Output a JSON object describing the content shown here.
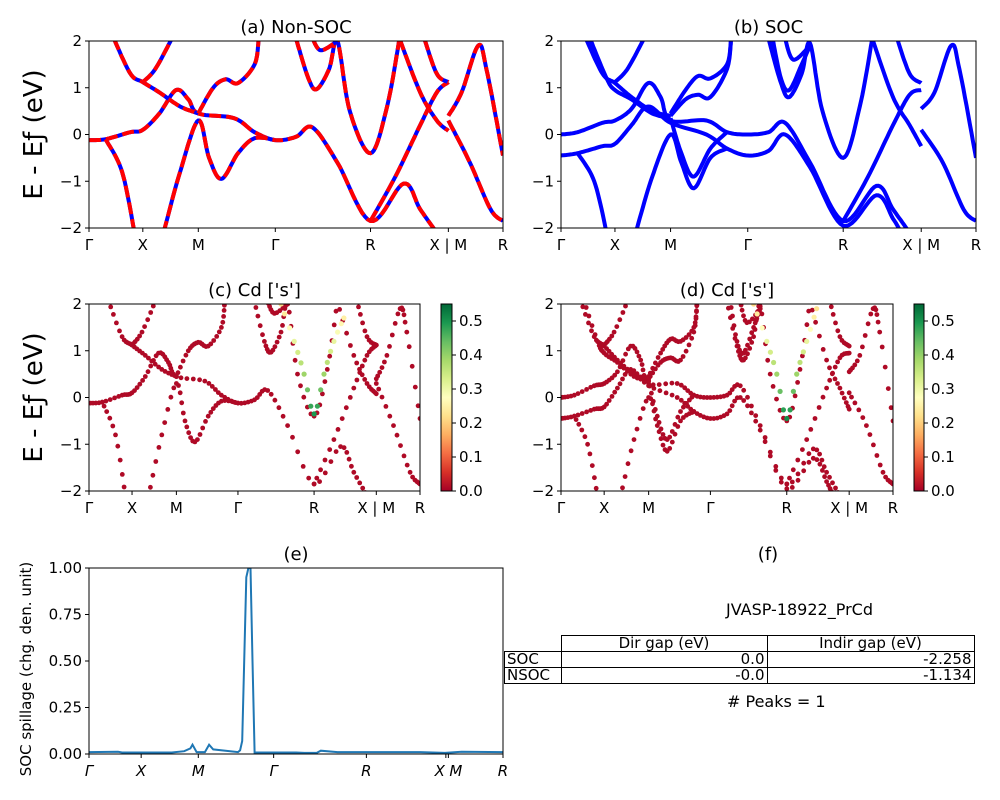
{
  "chart_data": [
    {
      "id": "a",
      "type": "line",
      "title": "(a) Non-SOC",
      "ylabel": "E - E_f (eV)",
      "ylim": [
        -2,
        2
      ],
      "yticks": [
        "2",
        "1",
        "0",
        "−1",
        "−2"
      ],
      "ytick_values": [
        2,
        1,
        0,
        -1,
        -2
      ],
      "xticks": [
        "Γ",
        "X",
        "M",
        "Γ",
        "R",
        "X | M",
        "R"
      ],
      "xtick_positions": [
        0,
        0.13,
        0.264,
        0.45,
        0.68,
        0.868,
        1.0
      ],
      "style": "red solid with blue dashes",
      "colors": {
        "line": "#ff0000",
        "dash": "#0000ff"
      },
      "bands": [
        [
          [
            0,
            -0.12
          ],
          [
            0.04,
            -0.1
          ],
          [
            0.1,
            0.05
          ],
          [
            0.13,
            0.1
          ],
          [
            0.17,
            0.45
          ],
          [
            0.21,
            0.95
          ],
          [
            0.24,
            0.75
          ],
          [
            0.264,
            0.45
          ],
          [
            0.35,
            0.35
          ],
          [
            0.4,
            0.05
          ],
          [
            0.45,
            -0.12
          ],
          [
            0.5,
            -0.05
          ],
          [
            0.54,
            0.15
          ],
          [
            0.6,
            -0.6
          ],
          [
            0.68,
            -1.85
          ],
          [
            0.76,
            -1.05
          ],
          [
            0.8,
            -1.6
          ],
          [
            0.84,
            -2.1
          ]
        ],
        [
          [
            0.04,
            -0.1
          ],
          [
            0.08,
            -0.8
          ],
          [
            0.11,
            -2.1
          ]
        ],
        [
          [
            0.18,
            -2.1
          ],
          [
            0.22,
            -0.8
          ],
          [
            0.264,
            0.3
          ],
          [
            0.29,
            -0.5
          ],
          [
            0.32,
            -0.95
          ],
          [
            0.36,
            -0.4
          ],
          [
            0.4,
            -0.08
          ],
          [
            0.45,
            -0.12
          ]
        ],
        [
          [
            0.06,
            2.05
          ],
          [
            0.1,
            1.3
          ],
          [
            0.13,
            1.12
          ],
          [
            0.17,
            0.9
          ],
          [
            0.22,
            0.6
          ],
          [
            0.264,
            0.45
          ]
        ],
        [
          [
            0.13,
            1.12
          ],
          [
            0.16,
            1.4
          ],
          [
            0.2,
            2.05
          ]
        ],
        [
          [
            0.264,
            0.45
          ],
          [
            0.3,
            1.0
          ],
          [
            0.33,
            1.18
          ],
          [
            0.36,
            1.1
          ],
          [
            0.4,
            1.5
          ],
          [
            0.41,
            2.05
          ]
        ],
        [
          [
            0.5,
            2.05
          ],
          [
            0.53,
            1.2
          ],
          [
            0.55,
            0.97
          ],
          [
            0.58,
            1.4
          ],
          [
            0.6,
            2.0
          ],
          [
            0.63,
            0.5
          ],
          [
            0.68,
            -0.4
          ],
          [
            0.72,
            0.6
          ],
          [
            0.75,
            2.05
          ]
        ],
        [
          [
            0.54,
            2.05
          ],
          [
            0.56,
            1.8
          ],
          [
            0.6,
            2.0
          ]
        ],
        [
          [
            0.68,
            -1.85
          ],
          [
            0.74,
            -0.9
          ],
          [
            0.8,
            0.2
          ],
          [
            0.84,
            0.9
          ],
          [
            0.868,
            1.12
          ]
        ],
        [
          [
            0.75,
            2.05
          ],
          [
            0.8,
            0.9
          ],
          [
            0.84,
            0.3
          ],
          [
            0.868,
            0.08
          ]
        ],
        [
          [
            0.81,
            2.05
          ],
          [
            0.84,
            1.3
          ],
          [
            0.868,
            1.12
          ]
        ],
        [
          [
            0.868,
            0.4
          ],
          [
            0.9,
            0.9
          ],
          [
            0.94,
            1.9
          ],
          [
            0.96,
            1.4
          ],
          [
            1.0,
            -0.45
          ]
        ],
        [
          [
            0.868,
            0.3
          ],
          [
            0.92,
            -0.6
          ],
          [
            0.97,
            -1.6
          ],
          [
            1.0,
            -1.85
          ]
        ]
      ]
    },
    {
      "id": "b",
      "type": "line",
      "title": "(b) SOC",
      "ylim": [
        -2,
        2
      ],
      "yticks": [
        "2",
        "1",
        "0",
        "−1",
        "−2"
      ],
      "ytick_values": [
        2,
        1,
        0,
        -1,
        -2
      ],
      "xticks": [
        "Γ",
        "X",
        "M",
        "Γ",
        "R",
        "X | M",
        "R"
      ],
      "xtick_positions": [
        0,
        0.13,
        0.264,
        0.45,
        0.68,
        0.868,
        1.0
      ],
      "colors": {
        "line": "#0000ff"
      },
      "bands": [
        [
          [
            0,
            0.0
          ],
          [
            0.04,
            0.05
          ],
          [
            0.1,
            0.25
          ],
          [
            0.13,
            0.3
          ],
          [
            0.17,
            0.55
          ],
          [
            0.21,
            1.1
          ],
          [
            0.24,
            0.8
          ],
          [
            0.264,
            0.3
          ],
          [
            0.35,
            0.3
          ],
          [
            0.4,
            0.05
          ],
          [
            0.45,
            0.0
          ],
          [
            0.5,
            0.05
          ],
          [
            0.54,
            0.25
          ],
          [
            0.6,
            -0.6
          ],
          [
            0.68,
            -1.85
          ],
          [
            0.76,
            -1.1
          ],
          [
            0.8,
            -1.6
          ],
          [
            0.84,
            -2.1
          ]
        ],
        [
          [
            0,
            -0.45
          ],
          [
            0.04,
            -0.4
          ],
          [
            0.1,
            -0.25
          ],
          [
            0.13,
            -0.2
          ],
          [
            0.17,
            0.2
          ],
          [
            0.21,
            0.6
          ],
          [
            0.264,
            0.25
          ],
          [
            0.35,
            0.0
          ],
          [
            0.4,
            -0.3
          ],
          [
            0.45,
            -0.45
          ],
          [
            0.5,
            -0.35
          ],
          [
            0.54,
            0.0
          ],
          [
            0.6,
            -0.7
          ],
          [
            0.68,
            -1.95
          ],
          [
            0.76,
            -1.3
          ],
          [
            0.8,
            -1.8
          ],
          [
            0.82,
            -2.1
          ]
        ],
        [
          [
            0.04,
            -0.4
          ],
          [
            0.08,
            -1.0
          ],
          [
            0.11,
            -2.1
          ]
        ],
        [
          [
            0.18,
            -2.1
          ],
          [
            0.22,
            -0.9
          ],
          [
            0.264,
            0.0
          ],
          [
            0.29,
            -0.6
          ],
          [
            0.32,
            -1.15
          ],
          [
            0.36,
            -0.5
          ],
          [
            0.4,
            -0.3
          ]
        ],
        [
          [
            0.264,
            0.35
          ],
          [
            0.29,
            -0.4
          ],
          [
            0.32,
            -0.9
          ],
          [
            0.36,
            -0.3
          ],
          [
            0.4,
            0.05
          ]
        ],
        [
          [
            0.06,
            2.05
          ],
          [
            0.1,
            1.3
          ],
          [
            0.13,
            1.1
          ],
          [
            0.17,
            0.8
          ],
          [
            0.22,
            0.5
          ],
          [
            0.264,
            0.4
          ]
        ],
        [
          [
            0.07,
            2.05
          ],
          [
            0.11,
            1.2
          ],
          [
            0.13,
            0.95
          ],
          [
            0.17,
            0.75
          ],
          [
            0.22,
            0.45
          ],
          [
            0.264,
            0.35
          ]
        ],
        [
          [
            0.13,
            1.12
          ],
          [
            0.16,
            1.4
          ],
          [
            0.2,
            2.05
          ]
        ],
        [
          [
            0.264,
            0.45
          ],
          [
            0.3,
            0.95
          ],
          [
            0.33,
            1.25
          ],
          [
            0.36,
            1.2
          ],
          [
            0.4,
            1.5
          ],
          [
            0.41,
            2.05
          ]
        ],
        [
          [
            0.264,
            0.4
          ],
          [
            0.3,
            0.75
          ],
          [
            0.33,
            0.85
          ],
          [
            0.36,
            0.8
          ],
          [
            0.4,
            1.4
          ],
          [
            0.41,
            2.05
          ]
        ],
        [
          [
            0.5,
            2.05
          ],
          [
            0.53,
            1.1
          ],
          [
            0.55,
            0.8
          ],
          [
            0.58,
            1.3
          ],
          [
            0.6,
            1.95
          ],
          [
            0.63,
            0.5
          ],
          [
            0.68,
            -0.5
          ],
          [
            0.72,
            0.6
          ],
          [
            0.75,
            2.05
          ]
        ],
        [
          [
            0.51,
            2.05
          ],
          [
            0.53,
            1.2
          ],
          [
            0.55,
            0.95
          ],
          [
            0.58,
            1.5
          ],
          [
            0.6,
            1.9
          ]
        ],
        [
          [
            0.54,
            2.05
          ],
          [
            0.56,
            1.6
          ],
          [
            0.6,
            1.9
          ]
        ],
        [
          [
            0.68,
            -1.85
          ],
          [
            0.74,
            -0.9
          ],
          [
            0.8,
            0.2
          ],
          [
            0.84,
            0.85
          ],
          [
            0.868,
            0.95
          ]
        ],
        [
          [
            0.75,
            2.05
          ],
          [
            0.8,
            0.8
          ],
          [
            0.84,
            0.2
          ],
          [
            0.868,
            -0.25
          ]
        ],
        [
          [
            0.81,
            2.05
          ],
          [
            0.84,
            1.3
          ],
          [
            0.868,
            1.1
          ]
        ],
        [
          [
            0.868,
            0.55
          ],
          [
            0.9,
            0.9
          ],
          [
            0.94,
            1.9
          ],
          [
            0.96,
            1.4
          ],
          [
            1.0,
            -0.5
          ]
        ],
        [
          [
            0.868,
            0.1
          ],
          [
            0.92,
            -0.6
          ],
          [
            0.97,
            -1.6
          ],
          [
            1.0,
            -1.85
          ]
        ]
      ]
    },
    {
      "id": "c",
      "type": "scatter",
      "title": "(c)  Cd ['s']",
      "ylabel": "E - E_f (eV)",
      "ylim": [
        -2,
        2
      ],
      "yticks": [
        "2",
        "1",
        "0",
        "−1",
        "−2"
      ],
      "ytick_values": [
        2,
        1,
        0,
        -1,
        -2
      ],
      "xticks": [
        "Γ",
        "X",
        "M",
        "Γ",
        "R",
        "X | M",
        "R"
      ],
      "xtick_positions": [
        0,
        0.13,
        0.264,
        0.45,
        0.68,
        0.868,
        1.0
      ],
      "colorbar": {
        "range": [
          0.0,
          0.55
        ],
        "ticks": [
          "0.0",
          "0.1",
          "0.2",
          "0.3",
          "0.4",
          "0.5"
        ],
        "tick_values": [
          0,
          0.1,
          0.2,
          0.3,
          0.4,
          0.5
        ],
        "cmap": "RdYlGn"
      },
      "weighted_bands_source": "a",
      "high_weight_band": [
        [
          0.58,
          2.0
        ],
        [
          0.62,
          1.2
        ],
        [
          0.65,
          0.5
        ],
        [
          0.68,
          -0.35
        ],
        [
          0.71,
          0.5
        ],
        [
          0.74,
          1.2
        ],
        [
          0.77,
          1.7
        ]
      ]
    },
    {
      "id": "d",
      "type": "scatter",
      "title": "(d) Cd ['s']",
      "ylim": [
        -2,
        2
      ],
      "yticks": [
        "2",
        "1",
        "0",
        "−1",
        "−2"
      ],
      "ytick_values": [
        2,
        1,
        0,
        -1,
        -2
      ],
      "xticks": [
        "Γ",
        "X",
        "M",
        "Γ",
        "R",
        "X | M",
        "R"
      ],
      "xtick_positions": [
        0,
        0.13,
        0.264,
        0.45,
        0.68,
        0.868,
        1.0
      ],
      "colorbar": {
        "range": [
          0.0,
          0.55
        ],
        "ticks": [
          "0.0",
          "0.1",
          "0.2",
          "0.3",
          "0.4",
          "0.5"
        ],
        "tick_values": [
          0,
          0.1,
          0.2,
          0.3,
          0.4,
          0.5
        ],
        "cmap": "RdYlGn"
      },
      "weighted_bands_source": "b",
      "high_weight_band": [
        [
          0.58,
          2.0
        ],
        [
          0.62,
          1.2
        ],
        [
          0.65,
          0.5
        ],
        [
          0.68,
          -0.45
        ],
        [
          0.71,
          0.5
        ],
        [
          0.74,
          1.2
        ],
        [
          0.77,
          1.9
        ]
      ]
    },
    {
      "id": "e",
      "type": "line",
      "title": "(e)",
      "ylabel": "SOC spillage (chg. den. unit)",
      "ylim": [
        0,
        1
      ],
      "yticks": [
        "1.00",
        "0.75",
        "0.50",
        "0.25",
        "0.00"
      ],
      "ytick_values": [
        1,
        0.75,
        0.5,
        0.25,
        0
      ],
      "xticks": [
        "Γ",
        "X",
        "M",
        "Γ",
        "R",
        "X",
        "M",
        "R"
      ],
      "xtick_positions": [
        0,
        0.126,
        0.264,
        0.446,
        0.67,
        0.862,
        0.868,
        1.0
      ],
      "color": "#1f77b4",
      "x": [
        0,
        0.07,
        0.08,
        0.2,
        0.23,
        0.245,
        0.25,
        0.26,
        0.28,
        0.29,
        0.3,
        0.36,
        0.365,
        0.37,
        0.38,
        0.385,
        0.39,
        0.395,
        0.4,
        0.5,
        0.52,
        0.55,
        0.56,
        0.6,
        0.8,
        0.86,
        0.9,
        1.0
      ],
      "y": [
        0.01,
        0.012,
        0.008,
        0.008,
        0.015,
        0.03,
        0.05,
        0.01,
        0.01,
        0.05,
        0.025,
        0.01,
        0.02,
        0.07,
        0.95,
        1.0,
        1.0,
        0.5,
        0.008,
        0.008,
        0.006,
        0.006,
        0.018,
        0.01,
        0.01,
        0.006,
        0.012,
        0.01
      ]
    },
    {
      "id": "f",
      "type": "table",
      "title": "(f)",
      "subtitle": "JVASP-18922_PrCd",
      "columns": [
        "Dir gap (eV)",
        "Indir gap (eV)"
      ],
      "rows": [
        {
          "label": "SOC",
          "values": [
            "0.0",
            "-2.258"
          ]
        },
        {
          "label": "NSOC",
          "values": [
            "-0.0",
            "-1.134"
          ]
        }
      ],
      "footer": "# Peaks = 1"
    }
  ]
}
